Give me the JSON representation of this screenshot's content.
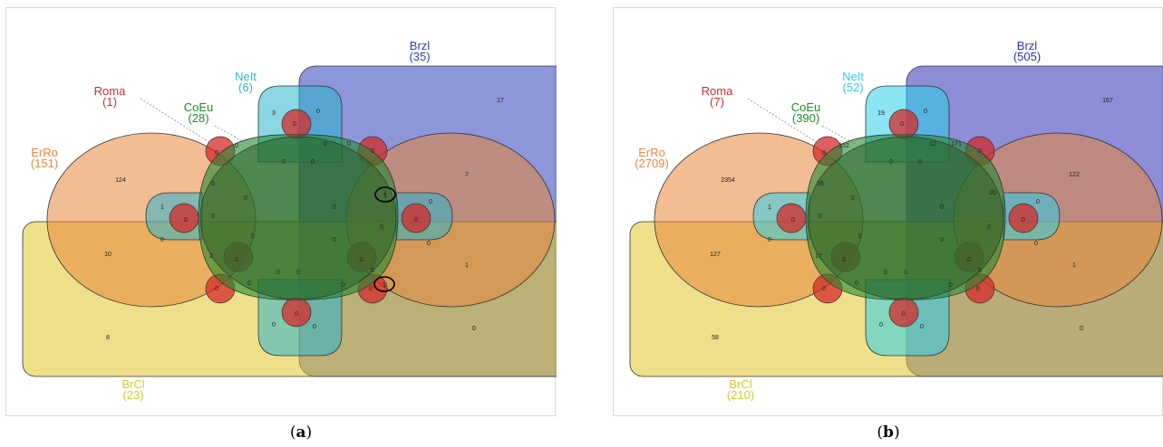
{
  "panels": [
    {
      "id": "a",
      "caption": "a",
      "sets": {
        "Roma": {
          "name": "Roma",
          "total": "(1)",
          "color": "#d42a2a"
        },
        "CoEu": {
          "name": "CoEu",
          "total": "(28)",
          "color": "#1f8a2e"
        },
        "NeIt": {
          "name": "NeIt",
          "total": "(6)",
          "color": "#2bb4cc"
        },
        "Brzl": {
          "name": "Brzl",
          "total": "(35)",
          "color": "#2f3fb8"
        },
        "ErRo": {
          "name": "ErRo",
          "total": "(151)",
          "color": "#e8863a"
        },
        "BrCl": {
          "name": "BrCl",
          "total": "(23)",
          "color": "#e0c62a"
        }
      },
      "counts": {
        "brzl_only": "17",
        "erro_only": "124",
        "brcl_only": "8",
        "erro_brcl": "10",
        "neit_top": "3",
        "neit_top_brzl": "0",
        "neit_bottom": "0",
        "neit_bottom_brzl": "0",
        "erro_brzl_right": "7",
        "brcl_brzl_right": "1",
        "brzl_brcl_bottom": "0",
        "left_lobe": "1",
        "left_lobe_lower": "0",
        "right_lobe": "0",
        "right_lobe_lower": "0",
        "center_1": "0",
        "center_2": "0",
        "center_3": "0",
        "center_4": "0",
        "center_5": "0",
        "center_6": "0",
        "center_7": "0",
        "center_8": "0",
        "center_9": "0",
        "ring_1": "0",
        "ring_2": "0",
        "ring_3": "1",
        "ring_4": "0",
        "ring_5": "0",
        "ring_6": "2",
        "ring_7": "0",
        "ring_8": "0",
        "ring_9": "0",
        "ring_10": "0",
        "roma_1": "0",
        "roma_2": "0",
        "roma_3": "0",
        "roma_4": "0",
        "roma_5": "0",
        "roma_6": "0",
        "roma_7": "0",
        "roma_8": "0",
        "roma_9": "0",
        "roma_10": "0",
        "circled_1": "1",
        "circled_2": "1"
      }
    },
    {
      "id": "b",
      "caption": "b",
      "sets": {
        "Roma": {
          "name": "Roma",
          "total": "(7)",
          "color": "#d42a2a"
        },
        "CoEu": {
          "name": "CoEu",
          "total": "(390)",
          "color": "#1f8a2e"
        },
        "NeIt": {
          "name": "NeIt",
          "total": "(52)",
          "color": "#2bd0ea"
        },
        "Brzl": {
          "name": "Brzl",
          "total": "(505)",
          "color": "#2f2fb8"
        },
        "ErRo": {
          "name": "ErRo",
          "total": "(2709)",
          "color": "#e8863a"
        },
        "BrCl": {
          "name": "BrCl",
          "total": "(210)",
          "color": "#e0c62a"
        }
      },
      "counts": {
        "brzl_only": "167",
        "erro_only": "2354",
        "brcl_only": "58",
        "erro_brcl": "127",
        "neit_top": "19",
        "neit_top_brzl": "0",
        "neit_bottom": "0",
        "neit_bottom_brzl": "0",
        "erro_brzl_right": "122",
        "brcl_brzl_right": "1",
        "brzl_brcl_bottom": "0",
        "left_lobe": "1",
        "left_lobe_lower": "0",
        "right_lobe": "0",
        "right_lobe_lower": "0",
        "center_1": "0",
        "center_2": "0",
        "center_3": "0",
        "center_4": "0",
        "center_5": "0",
        "center_6": "0",
        "center_7": "0",
        "center_8": "0",
        "center_9": "0",
        "ring_1": "152",
        "ring_2": "55",
        "ring_3": "20",
        "ring_4": "12",
        "ring_5": "171",
        "ring_6": "17",
        "ring_7": "0",
        "ring_8": "0",
        "ring_9": "0",
        "ring_10": "0",
        "roma_1": "0",
        "roma_2": "0",
        "roma_3": "0",
        "roma_4": "0",
        "roma_5": "0",
        "roma_6": "0",
        "roma_7": "0",
        "roma_8": "0",
        "roma_9": "0",
        "roma_10": "0",
        "circled_1": "",
        "circled_2": ""
      }
    }
  ]
}
